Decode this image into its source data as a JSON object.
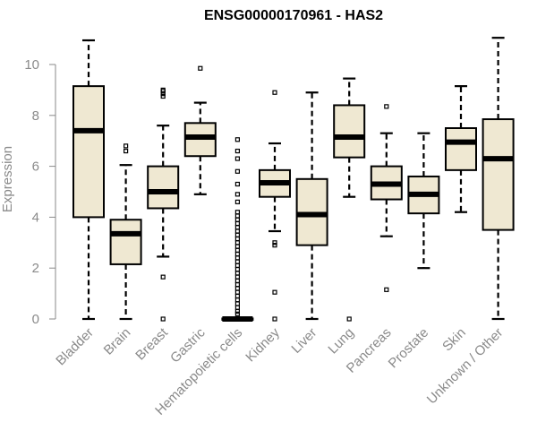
{
  "chart_data": {
    "type": "boxplot",
    "title": "ENSG00000170961 - HAS2",
    "xlabel": "",
    "ylabel": "Expression",
    "ylim": [
      0,
      11
    ],
    "yticks": [
      0,
      2,
      4,
      6,
      8,
      10
    ],
    "box_fill": "#efe8d2",
    "categories": [
      "Bladder",
      "Brain",
      "Breast",
      "Gastric",
      "Hematopoietic cells",
      "Kidney",
      "Liver",
      "Lung",
      "Pancreas",
      "Prostate",
      "Skin",
      "Unknown / Other"
    ],
    "boxes": [
      {
        "name": "Bladder",
        "whisker_low": 0,
        "q1": 4.0,
        "median": 7.4,
        "q3": 9.15,
        "whisker_high": 10.95,
        "outliers": []
      },
      {
        "name": "Brain",
        "whisker_low": 0,
        "q1": 2.15,
        "median": 3.35,
        "q3": 3.9,
        "whisker_high": 6.05,
        "outliers": [
          6.6,
          6.8
        ]
      },
      {
        "name": "Breast",
        "whisker_low": 2.45,
        "q1": 4.35,
        "median": 5.0,
        "q3": 6.0,
        "whisker_high": 7.6,
        "outliers": [
          0,
          1.65,
          8.75,
          8.85,
          8.95,
          9.0
        ]
      },
      {
        "name": "Gastric",
        "whisker_low": 4.9,
        "q1": 6.4,
        "median": 7.15,
        "q3": 7.7,
        "whisker_high": 8.5,
        "outliers": [
          9.85
        ]
      },
      {
        "name": "Hematopoietic cells",
        "whisker_low": 0,
        "q1": 0,
        "median": 0,
        "q3": 0.02,
        "whisker_high": 0.05,
        "outliers": [
          0.2,
          0.3,
          0.45,
          0.6,
          0.75,
          0.9,
          1.05,
          1.2,
          1.35,
          1.5,
          1.65,
          1.8,
          1.95,
          2.1,
          2.25,
          2.4,
          2.55,
          2.7,
          2.85,
          3.0,
          3.15,
          3.3,
          3.45,
          3.6,
          3.75,
          3.9,
          4.05,
          4.2,
          4.6,
          4.9,
          5.3,
          5.8,
          6.3,
          6.6,
          7.05
        ]
      },
      {
        "name": "Kidney",
        "whisker_low": 3.45,
        "q1": 4.8,
        "median": 5.35,
        "q3": 5.85,
        "whisker_high": 6.9,
        "outliers": [
          0,
          1.05,
          2.9,
          3.0,
          8.9
        ]
      },
      {
        "name": "Liver",
        "whisker_low": 0,
        "q1": 2.9,
        "median": 4.1,
        "q3": 5.5,
        "whisker_high": 8.9,
        "outliers": []
      },
      {
        "name": "Lung",
        "whisker_low": 4.8,
        "q1": 6.35,
        "median": 7.15,
        "q3": 8.4,
        "whisker_high": 9.45,
        "outliers": [
          0
        ]
      },
      {
        "name": "Pancreas",
        "whisker_low": 3.25,
        "q1": 4.7,
        "median": 5.3,
        "q3": 6.0,
        "whisker_high": 7.3,
        "outliers": [
          1.15,
          8.35
        ]
      },
      {
        "name": "Prostate",
        "whisker_low": 2.0,
        "q1": 4.15,
        "median": 4.9,
        "q3": 5.6,
        "whisker_high": 7.3,
        "outliers": []
      },
      {
        "name": "Skin",
        "whisker_low": 4.2,
        "q1": 5.85,
        "median": 6.95,
        "q3": 7.5,
        "whisker_high": 9.15,
        "outliers": []
      },
      {
        "name": "Unknown / Other",
        "whisker_low": 0,
        "q1": 3.5,
        "median": 6.3,
        "q3": 7.85,
        "whisker_high": 11.05,
        "outliers": []
      }
    ]
  }
}
